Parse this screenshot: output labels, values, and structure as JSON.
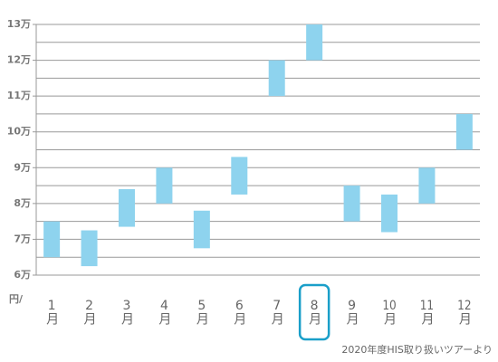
{
  "chart_data": {
    "type": "range-bar",
    "y_unit_label": "円/",
    "categories": [
      "1月",
      "2月",
      "3月",
      "4月",
      "5月",
      "6月",
      "7月",
      "8月",
      "9月",
      "10月",
      "11月",
      "12月"
    ],
    "low": [
      6.5,
      6.25,
      7.35,
      8.0,
      6.75,
      8.25,
      11.0,
      12.0,
      7.5,
      7.2,
      8.0,
      9.5
    ],
    "high": [
      7.5,
      7.25,
      8.4,
      9.0,
      7.8,
      9.3,
      12.0,
      13.0,
      8.5,
      8.25,
      9.0,
      10.5
    ],
    "color": "#8ed3ee",
    "highlight": "8月",
    "highlight_color": "#1a9fc9",
    "ylim": [
      6,
      13
    ],
    "yticks": [
      {
        "value": 6,
        "label": "6万"
      },
      {
        "value": 7,
        "label": "7万"
      },
      {
        "value": 8,
        "label": "8万"
      },
      {
        "value": 9,
        "label": "9万"
      },
      {
        "value": 10,
        "label": "10万"
      },
      {
        "value": 11,
        "label": "11万"
      },
      {
        "value": 12,
        "label": "12万"
      },
      {
        "value": 13,
        "label": "13万"
      }
    ],
    "grid": true,
    "grid_step": 0.5,
    "source": "2020年度HIS取り扱いツアーより"
  }
}
